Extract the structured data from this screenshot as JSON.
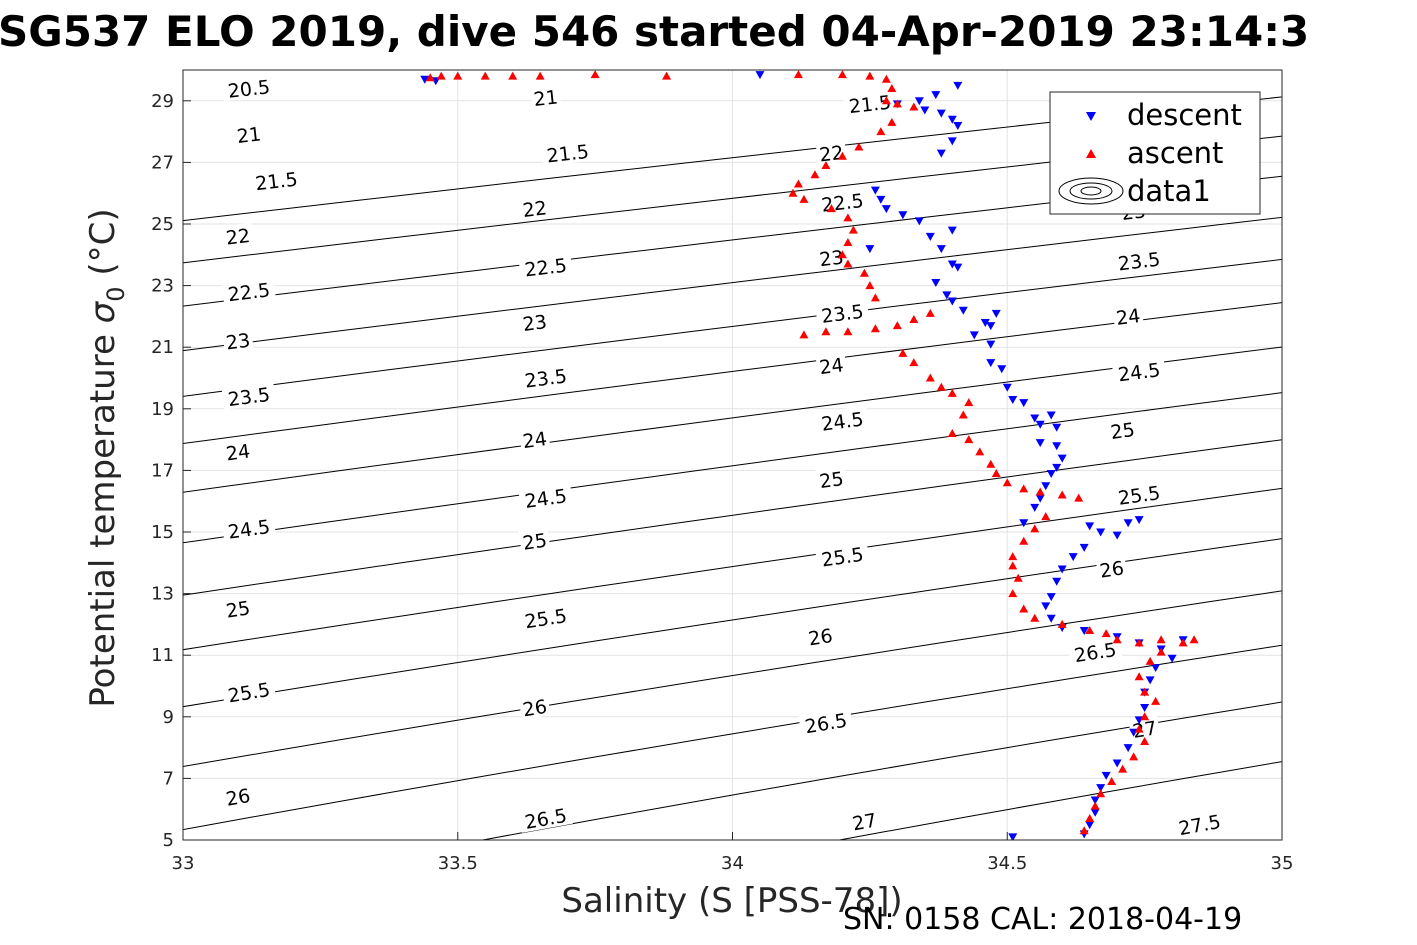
{
  "chart_data": {
    "type": "scatter",
    "title": "SG537 ELO 2019, dive 546 started 04-Apr-2019 23:14:3",
    "xlabel": "Salinity (S [PSS-78])",
    "ylabel": "Potential temperature",
    "ylabel_symbol": "σ",
    "ylabel_sub": "0",
    "ylabel_unit": "(°C)",
    "footer": "SN: 0158  CAL: 2018-04-19",
    "xlim": [
      33,
      35
    ],
    "ylim": [
      5,
      30
    ],
    "x_ticks": [
      "33",
      "33.5",
      "34",
      "34.5",
      "35"
    ],
    "y_ticks": [
      "5",
      "7",
      "9",
      "11",
      "13",
      "15",
      "17",
      "19",
      "21",
      "23",
      "25",
      "27",
      "29"
    ],
    "grid": true,
    "legend_position": "top-right",
    "legend": [
      {
        "label": "descent",
        "marker": "triangle-down",
        "color": "#0000ff"
      },
      {
        "label": "ascent",
        "marker": "triangle-up",
        "color": "#ff0000"
      },
      {
        "label": "data1",
        "marker": "contour",
        "color": "#000000"
      }
    ],
    "contours": {
      "levels": [
        "20.5",
        "21",
        "21.5",
        "22",
        "22.5",
        "23",
        "23.5",
        "24",
        "24.5",
        "25",
        "25.5",
        "26",
        "26.5",
        "27",
        "27.5"
      ],
      "labels": [
        {
          "text": "20.5",
          "x": 33.12,
          "y": 29.4
        },
        {
          "text": "21",
          "x": 33.12,
          "y": 27.9
        },
        {
          "text": "21.5",
          "x": 33.17,
          "y": 26.4
        },
        {
          "text": "22",
          "x": 33.1,
          "y": 24.6
        },
        {
          "text": "22.5",
          "x": 33.12,
          "y": 22.8
        },
        {
          "text": "23",
          "x": 33.1,
          "y": 21.2
        },
        {
          "text": "23.5",
          "x": 33.12,
          "y": 19.4
        },
        {
          "text": "24",
          "x": 33.1,
          "y": 17.6
        },
        {
          "text": "24.5",
          "x": 33.12,
          "y": 15.1
        },
        {
          "text": "25",
          "x": 33.1,
          "y": 12.5
        },
        {
          "text": "25.5",
          "x": 33.12,
          "y": 9.8
        },
        {
          "text": "26",
          "x": 33.1,
          "y": 6.4
        },
        {
          "text": "21",
          "x": 33.66,
          "y": 29.1
        },
        {
          "text": "21.5",
          "x": 33.7,
          "y": 27.3
        },
        {
          "text": "22",
          "x": 33.64,
          "y": 25.5
        },
        {
          "text": "22.5",
          "x": 33.66,
          "y": 23.6
        },
        {
          "text": "23",
          "x": 33.64,
          "y": 21.8
        },
        {
          "text": "23.5",
          "x": 33.66,
          "y": 20.0
        },
        {
          "text": "24",
          "x": 33.64,
          "y": 18.0
        },
        {
          "text": "24.5",
          "x": 33.66,
          "y": 16.1
        },
        {
          "text": "25",
          "x": 33.64,
          "y": 14.7
        },
        {
          "text": "25.5",
          "x": 33.66,
          "y": 12.2
        },
        {
          "text": "26",
          "x": 33.64,
          "y": 9.3
        },
        {
          "text": "26.5",
          "x": 33.66,
          "y": 5.7
        },
        {
          "text": "21.5",
          "x": 34.25,
          "y": 28.9
        },
        {
          "text": "22",
          "x": 34.18,
          "y": 27.3
        },
        {
          "text": "22.5",
          "x": 34.2,
          "y": 25.7
        },
        {
          "text": "23",
          "x": 34.18,
          "y": 23.9
        },
        {
          "text": "23.5",
          "x": 34.2,
          "y": 22.1
        },
        {
          "text": "24",
          "x": 34.18,
          "y": 20.4
        },
        {
          "text": "24.5",
          "x": 34.2,
          "y": 18.6
        },
        {
          "text": "25",
          "x": 34.18,
          "y": 16.7
        },
        {
          "text": "25.5",
          "x": 34.2,
          "y": 14.2
        },
        {
          "text": "26",
          "x": 34.16,
          "y": 11.6
        },
        {
          "text": "26.5",
          "x": 34.17,
          "y": 8.8
        },
        {
          "text": "27",
          "x": 34.24,
          "y": 5.6
        },
        {
          "text": "23",
          "x": 34.73,
          "y": 25.4
        },
        {
          "text": "23.5",
          "x": 34.74,
          "y": 23.8
        },
        {
          "text": "24",
          "x": 34.72,
          "y": 22.0
        },
        {
          "text": "24.5",
          "x": 34.74,
          "y": 20.2
        },
        {
          "text": "25",
          "x": 34.71,
          "y": 18.3
        },
        {
          "text": "25.5",
          "x": 34.74,
          "y": 16.2
        },
        {
          "text": "26",
          "x": 34.69,
          "y": 13.8
        },
        {
          "text": "26.5",
          "x": 34.66,
          "y": 11.1
        },
        {
          "text": "27",
          "x": 34.75,
          "y": 8.6
        },
        {
          "text": "27.5",
          "x": 34.85,
          "y": 5.5
        }
      ]
    },
    "series": [
      {
        "name": "descent",
        "points": [
          [
            33.44,
            29.7
          ],
          [
            33.46,
            29.65
          ],
          [
            34.05,
            29.85
          ],
          [
            34.3,
            28.9
          ],
          [
            34.34,
            29.0
          ],
          [
            34.35,
            28.7
          ],
          [
            34.37,
            29.2
          ],
          [
            34.38,
            28.6
          ],
          [
            34.4,
            28.4
          ],
          [
            34.41,
            28.2
          ],
          [
            34.4,
            27.7
          ],
          [
            34.38,
            27.3
          ],
          [
            34.41,
            29.5
          ],
          [
            34.26,
            26.1
          ],
          [
            34.27,
            25.8
          ],
          [
            34.28,
            25.5
          ],
          [
            34.31,
            25.3
          ],
          [
            34.34,
            25.1
          ],
          [
            34.25,
            24.2
          ],
          [
            34.36,
            24.6
          ],
          [
            34.38,
            24.2
          ],
          [
            34.4,
            24.8
          ],
          [
            34.4,
            23.7
          ],
          [
            34.41,
            23.6
          ],
          [
            34.37,
            23.1
          ],
          [
            34.39,
            22.7
          ],
          [
            34.4,
            22.5
          ],
          [
            34.42,
            22.2
          ],
          [
            34.46,
            21.8
          ],
          [
            34.47,
            21.7
          ],
          [
            34.48,
            22.1
          ],
          [
            34.44,
            21.4
          ],
          [
            34.47,
            20.5
          ],
          [
            34.49,
            20.3
          ],
          [
            34.47,
            21.1
          ],
          [
            34.5,
            19.7
          ],
          [
            34.51,
            19.3
          ],
          [
            34.53,
            19.2
          ],
          [
            34.55,
            18.7
          ],
          [
            34.56,
            18.5
          ],
          [
            34.56,
            17.9
          ],
          [
            34.58,
            18.8
          ],
          [
            34.59,
            18.4
          ],
          [
            34.59,
            17.8
          ],
          [
            34.6,
            17.4
          ],
          [
            34.59,
            17.1
          ],
          [
            34.58,
            16.9
          ],
          [
            34.57,
            16.5
          ],
          [
            34.56,
            16.1
          ],
          [
            34.55,
            15.8
          ],
          [
            34.53,
            15.3
          ],
          [
            34.65,
            15.2
          ],
          [
            34.67,
            15.0
          ],
          [
            34.7,
            14.9
          ],
          [
            34.72,
            15.3
          ],
          [
            34.74,
            15.4
          ],
          [
            34.64,
            14.5
          ],
          [
            34.62,
            14.2
          ],
          [
            34.6,
            13.8
          ],
          [
            34.59,
            13.4
          ],
          [
            34.58,
            12.9
          ],
          [
            34.57,
            12.6
          ],
          [
            34.58,
            12.2
          ],
          [
            34.6,
            11.9
          ],
          [
            34.64,
            11.8
          ],
          [
            34.7,
            11.6
          ],
          [
            34.74,
            11.4
          ],
          [
            34.78,
            11.2
          ],
          [
            34.82,
            11.5
          ],
          [
            34.8,
            10.9
          ],
          [
            34.77,
            10.6
          ],
          [
            34.76,
            10.2
          ],
          [
            34.75,
            9.8
          ],
          [
            34.75,
            9.3
          ],
          [
            34.74,
            8.9
          ],
          [
            34.73,
            8.5
          ],
          [
            34.72,
            8.0
          ],
          [
            34.7,
            7.5
          ],
          [
            34.68,
            7.1
          ],
          [
            34.67,
            6.7
          ],
          [
            34.66,
            6.3
          ],
          [
            34.66,
            5.9
          ],
          [
            34.65,
            5.5
          ],
          [
            34.64,
            5.2
          ],
          [
            34.51,
            5.1
          ]
        ]
      },
      {
        "name": "ascent",
        "points": [
          [
            33.45,
            29.75
          ],
          [
            33.47,
            29.8
          ],
          [
            33.5,
            29.8
          ],
          [
            33.55,
            29.8
          ],
          [
            33.6,
            29.8
          ],
          [
            33.65,
            29.8
          ],
          [
            33.75,
            29.85
          ],
          [
            33.88,
            29.8
          ],
          [
            34.12,
            29.85
          ],
          [
            34.2,
            29.85
          ],
          [
            34.25,
            29.8
          ],
          [
            34.28,
            29.7
          ],
          [
            34.29,
            29.4
          ],
          [
            34.28,
            29.0
          ],
          [
            34.3,
            28.9
          ],
          [
            34.33,
            28.8
          ],
          [
            34.29,
            28.3
          ],
          [
            34.27,
            28.0
          ],
          [
            34.23,
            27.5
          ],
          [
            34.2,
            27.2
          ],
          [
            34.17,
            26.9
          ],
          [
            34.15,
            26.6
          ],
          [
            34.12,
            26.3
          ],
          [
            34.11,
            26.0
          ],
          [
            34.13,
            25.8
          ],
          [
            34.18,
            25.5
          ],
          [
            34.21,
            25.2
          ],
          [
            34.22,
            24.8
          ],
          [
            34.21,
            24.4
          ],
          [
            34.2,
            24.0
          ],
          [
            34.21,
            23.7
          ],
          [
            34.24,
            23.4
          ],
          [
            34.25,
            23.0
          ],
          [
            34.26,
            22.6
          ],
          [
            34.13,
            21.4
          ],
          [
            34.17,
            21.5
          ],
          [
            34.21,
            21.5
          ],
          [
            34.26,
            21.6
          ],
          [
            34.3,
            21.7
          ],
          [
            34.33,
            21.9
          ],
          [
            34.36,
            22.1
          ],
          [
            34.31,
            20.8
          ],
          [
            34.33,
            20.5
          ],
          [
            34.36,
            20.0
          ],
          [
            34.38,
            19.7
          ],
          [
            34.4,
            19.5
          ],
          [
            34.43,
            19.2
          ],
          [
            34.42,
            18.8
          ],
          [
            34.4,
            18.2
          ],
          [
            34.43,
            18.0
          ],
          [
            34.45,
            17.6
          ],
          [
            34.47,
            17.2
          ],
          [
            34.48,
            16.9
          ],
          [
            34.5,
            16.6
          ],
          [
            34.53,
            16.4
          ],
          [
            34.56,
            16.3
          ],
          [
            34.6,
            16.2
          ],
          [
            34.63,
            16.1
          ],
          [
            34.57,
            15.5
          ],
          [
            34.55,
            15.1
          ],
          [
            34.53,
            14.7
          ],
          [
            34.51,
            14.2
          ],
          [
            34.51,
            13.9
          ],
          [
            34.52,
            13.5
          ],
          [
            34.51,
            13.0
          ],
          [
            34.53,
            12.5
          ],
          [
            34.55,
            12.2
          ],
          [
            34.6,
            12.0
          ],
          [
            34.65,
            11.8
          ],
          [
            34.68,
            11.7
          ],
          [
            34.7,
            11.5
          ],
          [
            34.74,
            11.4
          ],
          [
            34.78,
            11.5
          ],
          [
            34.82,
            11.4
          ],
          [
            34.84,
            11.5
          ],
          [
            34.78,
            11.1
          ],
          [
            34.76,
            10.8
          ],
          [
            34.74,
            10.3
          ],
          [
            34.75,
            9.8
          ],
          [
            34.77,
            9.5
          ],
          [
            34.75,
            9.0
          ],
          [
            34.74,
            8.6
          ],
          [
            34.75,
            8.2
          ],
          [
            34.73,
            7.7
          ],
          [
            34.71,
            7.3
          ],
          [
            34.69,
            6.9
          ],
          [
            34.67,
            6.5
          ],
          [
            34.66,
            6.1
          ],
          [
            34.65,
            5.7
          ],
          [
            34.64,
            5.3
          ]
        ]
      }
    ]
  }
}
